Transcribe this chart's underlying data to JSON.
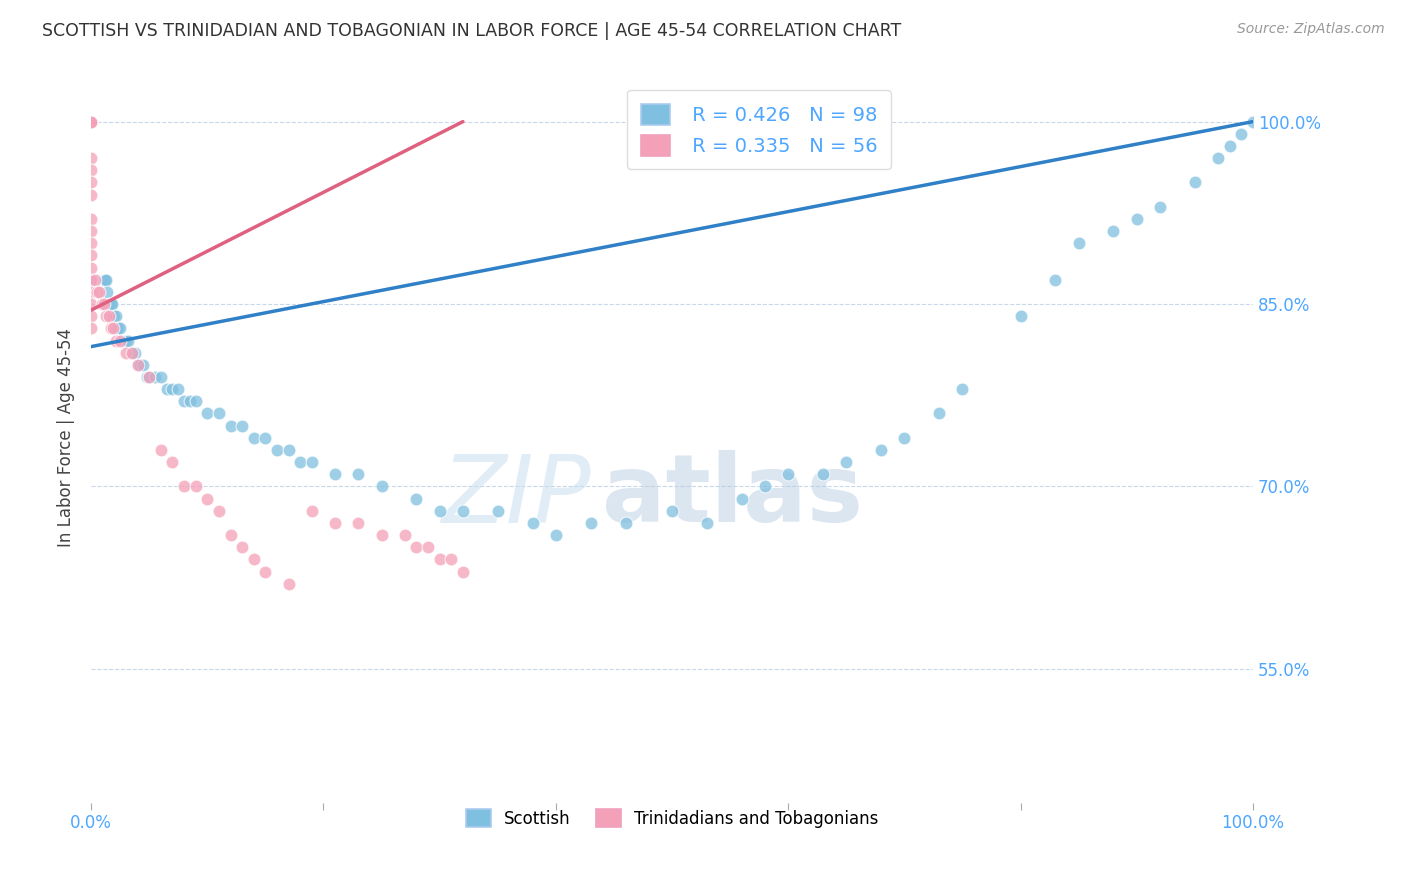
{
  "title": "SCOTTISH VS TRINIDADIAN AND TOBAGONIAN IN LABOR FORCE | AGE 45-54 CORRELATION CHART",
  "source_text": "Source: ZipAtlas.com",
  "ylabel": "In Labor Force | Age 45-54",
  "xlim": [
    0.0,
    1.0
  ],
  "ylim": [
    0.44,
    1.04
  ],
  "legend_R_blue": "R = 0.426",
  "legend_N_blue": "N = 98",
  "legend_R_pink": "R = 0.335",
  "legend_N_pink": "N = 56",
  "blue_color": "#7fbfdf",
  "pink_color": "#f4a0b8",
  "trendline_blue_color": "#3080c8",
  "trendline_pink_color": "#e06080",
  "watermark_zip": "ZIP",
  "watermark_atlas": "atlas",
  "background_color": "#ffffff",
  "grid_color": "#c8d8e8",
  "right_axis_color": "#4da6ff",
  "blue_scatter_x": [
    0.0,
    0.0,
    0.0,
    0.0,
    0.0,
    0.0,
    0.0,
    0.0,
    0.0,
    0.0,
    0.0,
    0.0,
    0.0,
    0.0,
    0.0,
    0.003,
    0.005,
    0.006,
    0.007,
    0.008,
    0.009,
    0.01,
    0.011,
    0.012,
    0.013,
    0.014,
    0.015,
    0.016,
    0.017,
    0.018,
    0.02,
    0.021,
    0.022,
    0.023,
    0.025,
    0.027,
    0.028,
    0.03,
    0.032,
    0.034,
    0.036,
    0.038,
    0.04,
    0.042,
    0.045,
    0.048,
    0.05,
    0.055,
    0.06,
    0.065,
    0.07,
    0.075,
    0.08,
    0.085,
    0.09,
    0.1,
    0.11,
    0.12,
    0.13,
    0.14,
    0.15,
    0.16,
    0.17,
    0.18,
    0.19,
    0.21,
    0.23,
    0.25,
    0.28,
    0.3,
    0.32,
    0.35,
    0.38,
    0.4,
    0.43,
    0.46,
    0.5,
    0.53,
    0.56,
    0.58,
    0.6,
    0.63,
    0.65,
    0.68,
    0.7,
    0.73,
    0.75,
    0.8,
    0.83,
    0.85,
    0.88,
    0.9,
    0.92,
    0.95,
    0.97,
    0.98,
    0.99,
    1.0
  ],
  "blue_scatter_y": [
    1.0,
    1.0,
    1.0,
    1.0,
    1.0,
    1.0,
    1.0,
    1.0,
    1.0,
    1.0,
    0.87,
    0.87,
    0.87,
    0.87,
    0.87,
    0.87,
    0.87,
    0.87,
    0.87,
    0.87,
    0.87,
    0.87,
    0.87,
    0.87,
    0.87,
    0.86,
    0.85,
    0.85,
    0.85,
    0.85,
    0.84,
    0.84,
    0.83,
    0.83,
    0.83,
    0.82,
    0.82,
    0.82,
    0.82,
    0.81,
    0.81,
    0.81,
    0.8,
    0.8,
    0.8,
    0.79,
    0.79,
    0.79,
    0.79,
    0.78,
    0.78,
    0.78,
    0.77,
    0.77,
    0.77,
    0.76,
    0.76,
    0.75,
    0.75,
    0.74,
    0.74,
    0.73,
    0.73,
    0.72,
    0.72,
    0.71,
    0.71,
    0.7,
    0.69,
    0.68,
    0.68,
    0.68,
    0.67,
    0.66,
    0.67,
    0.67,
    0.68,
    0.67,
    0.69,
    0.7,
    0.71,
    0.71,
    0.72,
    0.73,
    0.74,
    0.76,
    0.78,
    0.84,
    0.87,
    0.9,
    0.91,
    0.92,
    0.93,
    0.95,
    0.97,
    0.98,
    0.99,
    1.0
  ],
  "pink_scatter_x": [
    0.0,
    0.0,
    0.0,
    0.0,
    0.0,
    0.0,
    0.0,
    0.0,
    0.0,
    0.0,
    0.0,
    0.0,
    0.0,
    0.0,
    0.0,
    0.0,
    0.0,
    0.0,
    0.0,
    0.0,
    0.003,
    0.005,
    0.007,
    0.009,
    0.011,
    0.013,
    0.015,
    0.017,
    0.019,
    0.021,
    0.025,
    0.03,
    0.035,
    0.04,
    0.05,
    0.06,
    0.07,
    0.08,
    0.09,
    0.1,
    0.11,
    0.12,
    0.13,
    0.14,
    0.15,
    0.17,
    0.19,
    0.21,
    0.23,
    0.25,
    0.27,
    0.28,
    0.29,
    0.3,
    0.31,
    0.32
  ],
  "pink_scatter_y": [
    1.0,
    1.0,
    1.0,
    1.0,
    1.0,
    1.0,
    0.97,
    0.96,
    0.95,
    0.94,
    0.92,
    0.91,
    0.9,
    0.89,
    0.88,
    0.87,
    0.86,
    0.85,
    0.84,
    0.83,
    0.87,
    0.86,
    0.86,
    0.85,
    0.85,
    0.84,
    0.84,
    0.83,
    0.83,
    0.82,
    0.82,
    0.81,
    0.81,
    0.8,
    0.79,
    0.73,
    0.72,
    0.7,
    0.7,
    0.69,
    0.68,
    0.66,
    0.65,
    0.64,
    0.63,
    0.62,
    0.68,
    0.67,
    0.67,
    0.66,
    0.66,
    0.65,
    0.65,
    0.64,
    0.64,
    0.63
  ],
  "trendline_blue_x0": 0.0,
  "trendline_blue_y0": 0.815,
  "trendline_blue_x1": 1.0,
  "trendline_blue_y1": 1.0,
  "trendline_pink_x0": 0.0,
  "trendline_pink_y0": 0.845,
  "trendline_pink_x1": 0.32,
  "trendline_pink_y1": 1.0
}
